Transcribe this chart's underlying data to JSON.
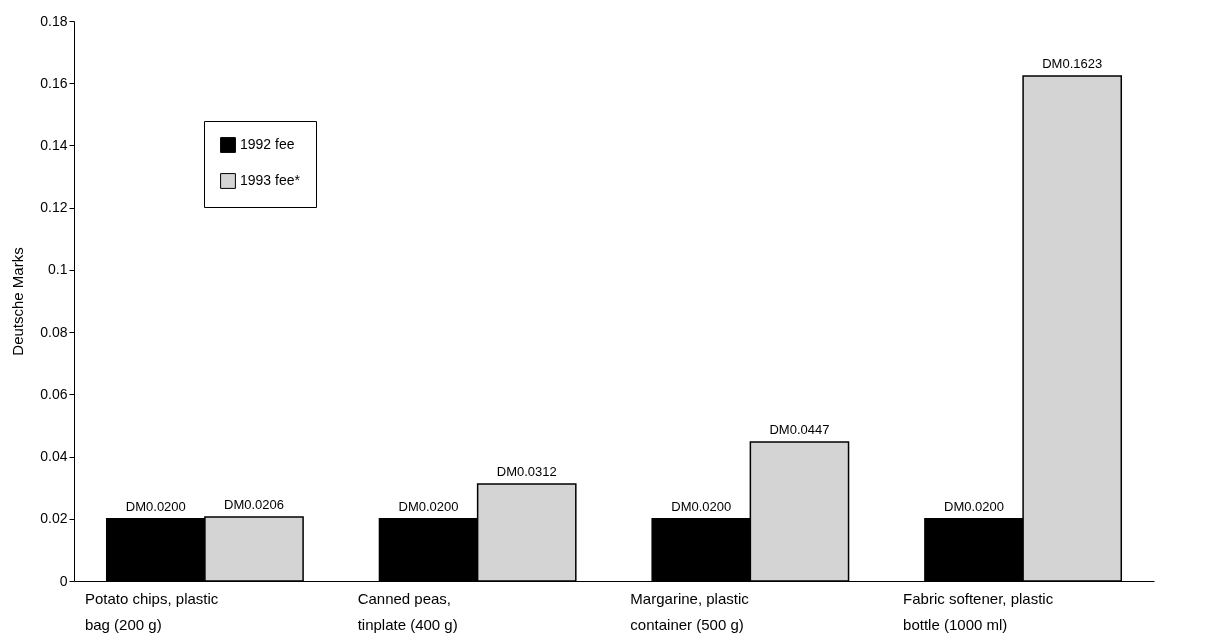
{
  "chart_data": {
    "type": "bar",
    "ylabel": "Deutsche Marks",
    "categories": [
      "Potato chips, plastic bag (200 g)",
      "Canned peas, tinplate (400 g)",
      "Margarine, plastic container (500 g)",
      "Fabric softener, plastic bottle (1000 ml)"
    ],
    "series": [
      {
        "name": "1992 fee",
        "color": "#000000",
        "values": [
          0.02,
          0.02,
          0.02,
          0.02
        ],
        "value_labels": [
          "DM0.0200",
          "DM0.0200",
          "DM0.0200",
          "DM0.0200"
        ]
      },
      {
        "name": "1993 fee*",
        "color": "#d4d4d4",
        "values": [
          0.0206,
          0.0312,
          0.0447,
          0.1623
        ],
        "value_labels": [
          "DM0.0206",
          "DM0.0312",
          "DM0.0447",
          "DM0.1623"
        ]
      }
    ],
    "ylim": [
      0,
      0.18
    ],
    "yticks": [
      0,
      0.02,
      0.04,
      0.06,
      0.08,
      0.1,
      0.12,
      0.14,
      0.16,
      0.18
    ],
    "grid": false,
    "legend": "top left"
  }
}
